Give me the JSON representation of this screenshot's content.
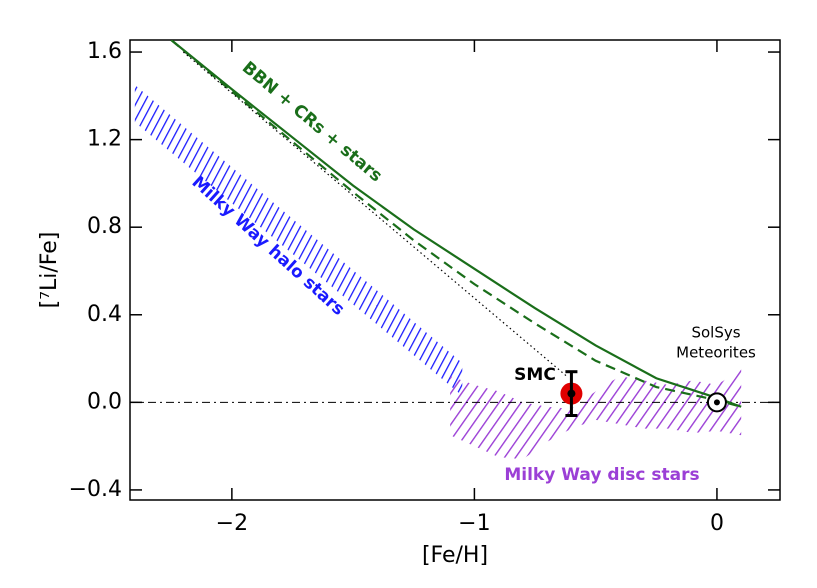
{
  "chart_data": {
    "type": "line",
    "xlabel": "[Fe/H]",
    "ylabel": "[⁷Li/Fe]",
    "xlim": [
      -2.42,
      0.26
    ],
    "ylim": [
      -0.446,
      1.655
    ],
    "xticks": [
      {
        "value": -2,
        "label": "−2"
      },
      {
        "value": -1,
        "label": "−1"
      },
      0
    ],
    "yticks": [
      {
        "value": -0.4,
        "label": "−0.4"
      },
      {
        "value": 0,
        "label": "0.0"
      },
      0.4,
      0.8,
      1.2,
      1.6
    ],
    "reference_line": 0,
    "series": [
      {
        "color": "#1a6e1a",
        "style": "solid",
        "x": [
          -2.25,
          -2.0,
          -1.75,
          -1.5,
          -1.25,
          -1.0,
          -0.75,
          -0.5,
          -0.25,
          0,
          0.1
        ],
        "values": [
          1.655,
          1.43,
          1.21,
          0.99,
          0.79,
          0.61,
          0.43,
          0.26,
          0.11,
          0.02,
          -0.02
        ]
      },
      {
        "color": "#1a6e1a",
        "style": "dashed",
        "x": [
          -2.25,
          -2.0,
          -1.75,
          -1.5,
          -1.25,
          -1.0,
          -0.75,
          -0.5,
          -0.25,
          0,
          0.1
        ],
        "values": [
          1.655,
          1.42,
          1.19,
          0.96,
          0.74,
          0.54,
          0.36,
          0.19,
          0.07,
          0.01,
          -0.02
        ]
      },
      {
        "color": "#000000",
        "style": "dotted",
        "x": [
          -2.2,
          -0.62
        ],
        "values": [
          1.6,
          0.12
        ]
      }
    ],
    "bands": [
      {
        "color": "#1a1aff",
        "x": [
          -2.4,
          -1.05
        ],
        "upper": [
          1.45,
          0.18
        ],
        "lower": [
          1.28,
          0.03
        ]
      },
      {
        "color": "#9b3fd6",
        "x": [
          -1.1,
          -1.0,
          -0.9,
          -0.8,
          -0.7,
          -0.6,
          -0.5,
          -0.4,
          -0.3,
          -0.2,
          -0.1,
          0,
          0.1
        ],
        "upper": [
          0.12,
          0.08,
          0.05,
          0.0,
          -0.02,
          -0.03,
          0.05,
          0.12,
          0.1,
          0.08,
          0.1,
          0.08,
          0.15
        ],
        "lower": [
          -0.15,
          -0.2,
          -0.25,
          -0.26,
          -0.18,
          -0.12,
          -0.08,
          -0.1,
          -0.12,
          -0.12,
          -0.14,
          -0.13,
          -0.15
        ]
      }
    ],
    "smc": {
      "x": -0.6,
      "y": 0.04,
      "yerr": 0.1,
      "color": "#e00000"
    },
    "sun": {
      "x": 0,
      "y": 0
    },
    "annotations": [
      "BBN + CRs + stars",
      "Milky Way halo stars",
      "Milky Way disc stars",
      "SMC",
      "SolSys",
      "Meteorites"
    ]
  }
}
